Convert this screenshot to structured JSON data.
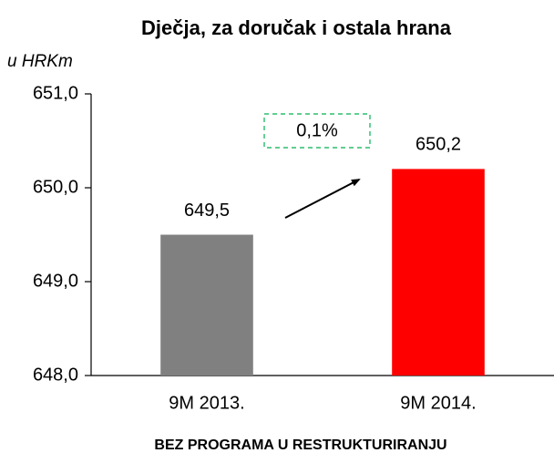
{
  "chart_data": {
    "type": "bar",
    "title": "Dječja, za doručak i ostala hrana",
    "subtitle": "u HRKm",
    "x_label": "BEZ PROGRAMA U RESTRUKTURIRANJU",
    "categories": [
      "9M 2013.",
      "9M 2014."
    ],
    "values": [
      649.5,
      650.2
    ],
    "value_labels": [
      "649,5",
      "650,2"
    ],
    "colors": [
      "#808080",
      "#ff0000"
    ],
    "ylim": [
      648,
      651
    ],
    "yticks": [
      {
        "value": 648,
        "label": "648,0"
      },
      {
        "value": 649,
        "label": "649,0"
      },
      {
        "value": 650,
        "label": "650,0"
      },
      {
        "value": 651,
        "label": "651,0"
      }
    ],
    "grid": false,
    "annotations": [
      "0,1%"
    ]
  }
}
